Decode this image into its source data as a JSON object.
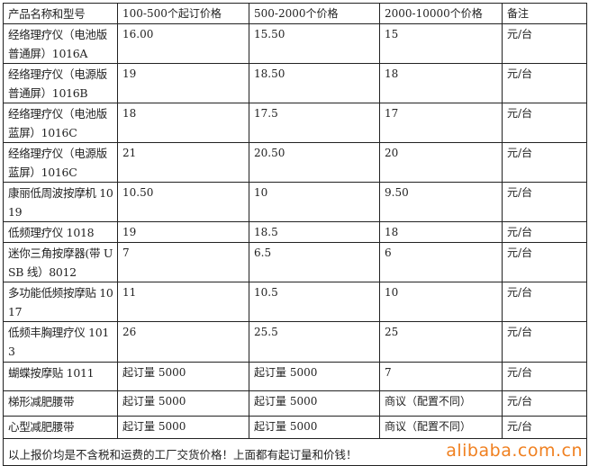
{
  "headers": [
    "产品名称和型号",
    "100-500个起订价格",
    "500-2000个价格",
    "2000-10000个价格",
    "备注"
  ],
  "rows": [
    [
      "经络理疗仪（电池版普通屏）1016A",
      "16.00",
      "15.50",
      "15",
      "元/台"
    ],
    [
      "经络理疗仪（电源版普通屏）1016B",
      "19",
      "18.50",
      "18",
      "元/台"
    ],
    [
      "经络理疗仪（电池版蓝屏）1016C",
      "18",
      "17.5",
      "17",
      "元/台"
    ],
    [
      "经络理疗仪（电源版蓝屏）1016C",
      "21",
      "20.50",
      "20",
      "元/台"
    ],
    [
      "康丽低周波按摩机 1019",
      "10.50",
      "10",
      "9.50",
      "元/台"
    ],
    [
      "低频理疗仪 1018",
      "19",
      "18.5",
      "18",
      "元/台"
    ],
    [
      "迷你三角按摩器(带 USB 线）8012",
      "7",
      "6.5",
      "6",
      "元/台"
    ],
    [
      "多功能低频按摩贴 1017",
      "11",
      "10.5",
      "10",
      "元/台"
    ],
    [
      "低频丰胸理疗仪 1013",
      "26",
      "25.5",
      "25",
      "元/台"
    ],
    [
      "蝴蝶按摩贴 1011",
      "起订量 5000",
      "起订量 5000",
      "7",
      "元/台"
    ],
    [
      "梯形减肥腰带",
      "起订量 5000",
      "起订量 5000",
      "商议（配置不同）",
      "元/台"
    ],
    [
      "心型减肥腰带",
      "起订量 5000",
      "起订量 5000",
      "商议（配置不同）",
      "元/台"
    ]
  ],
  "footer": "以上报价均是不含税和运费的工厂交货价格！上面都有起订量和价钱！",
  "watermark": "alibaba.com.cn",
  "colors": {
    "watermark": "#f08020",
    "border": "#222222"
  }
}
